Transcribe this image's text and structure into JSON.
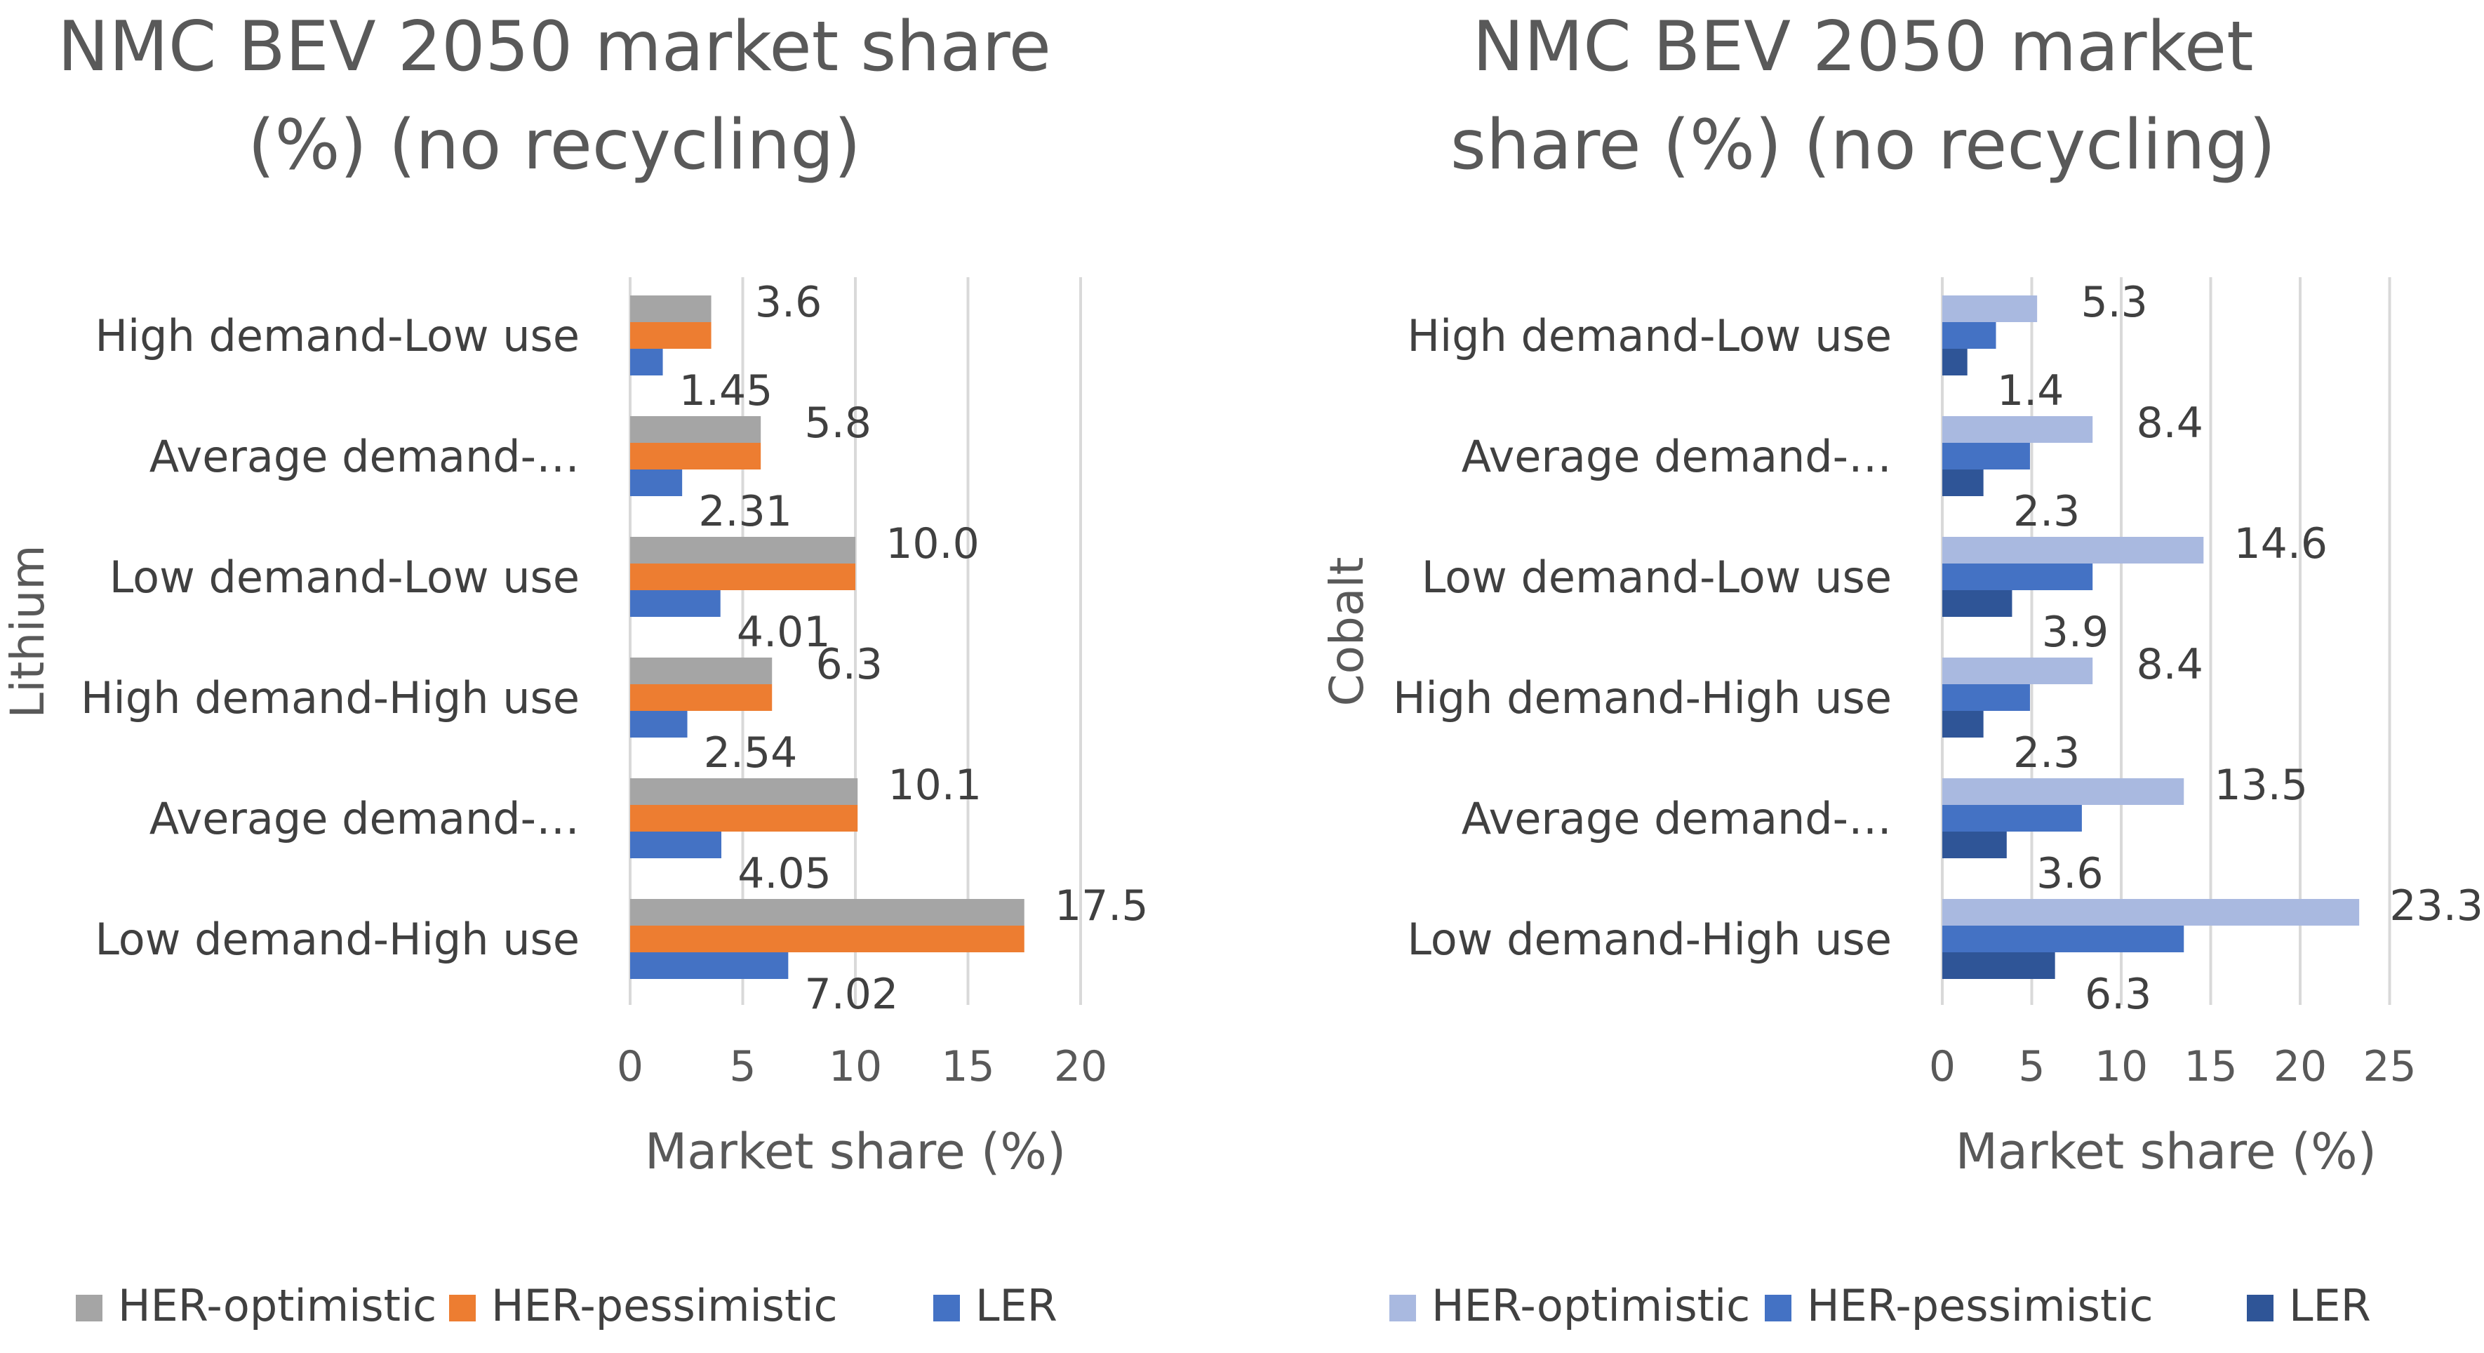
{
  "chart_data": [
    {
      "type": "bar",
      "orientation": "horizontal",
      "title_lines": [
        "NMC BEV 2050 market share",
        "(%) (no recycling)"
      ],
      "xlabel": "Market share (%)",
      "ylabel": "Lithium",
      "xlim": [
        0,
        20
      ],
      "xticks": [
        "0",
        "5",
        "10",
        "15",
        "20"
      ],
      "grid": "vertical",
      "legend_position": "bottom",
      "categories": [
        "High demand-Low use",
        "Average demand-…",
        "Low demand-Low use",
        "High demand-High use",
        "Average demand-…",
        "Low demand-High use"
      ],
      "series": [
        {
          "name": "HER-optimistic",
          "color": "#a5a5a5",
          "values": [
            3.6,
            5.8,
            10.0,
            6.3,
            10.1,
            17.5
          ],
          "labels": [
            "3.6",
            "5.8",
            "10.0",
            "6.3",
            "10.1",
            "17.5"
          ]
        },
        {
          "name": "HER-pessimistic",
          "color": "#ed7d31",
          "values": [
            3.6,
            5.8,
            10.0,
            6.3,
            10.1,
            17.5
          ]
        },
        {
          "name": "LER",
          "color": "#4472c4",
          "values": [
            1.45,
            2.31,
            4.01,
            2.54,
            4.05,
            7.02
          ],
          "labels": [
            "1.45",
            "2.31",
            "4.01",
            "2.54",
            "4.05",
            "7.02"
          ]
        }
      ]
    },
    {
      "type": "bar",
      "orientation": "horizontal",
      "title_lines": [
        "NMC BEV 2050 market",
        "share (%) (no recycling)"
      ],
      "xlabel": "Market share (%)",
      "ylabel": "Cobalt",
      "xlim": [
        0,
        25
      ],
      "xticks": [
        "0",
        "5",
        "10",
        "15",
        "20",
        "25"
      ],
      "grid": "vertical",
      "legend_position": "bottom",
      "categories": [
        "High demand-Low use",
        "Average demand-…",
        "Low demand-Low use",
        "High demand-High use",
        "Average demand-…",
        "Low demand-High use"
      ],
      "series": [
        {
          "name": "HER-optimistic",
          "color": "#a9b9e0",
          "values": [
            5.3,
            8.4,
            14.6,
            8.4,
            13.5,
            23.3
          ],
          "labels": [
            "5.3",
            "8.4",
            "14.6",
            "8.4",
            "13.5",
            "23.3"
          ]
        },
        {
          "name": "HER-pessimistic",
          "color": "#4472c4",
          "values": [
            3.0,
            4.9,
            8.4,
            4.9,
            7.8,
            13.5
          ]
        },
        {
          "name": "LER",
          "color": "#2f5597",
          "values": [
            1.4,
            2.3,
            3.9,
            2.3,
            3.6,
            6.3
          ],
          "labels": [
            "1.4",
            "2.3",
            "3.9",
            "2.3",
            "3.6",
            "6.3"
          ]
        }
      ]
    }
  ]
}
